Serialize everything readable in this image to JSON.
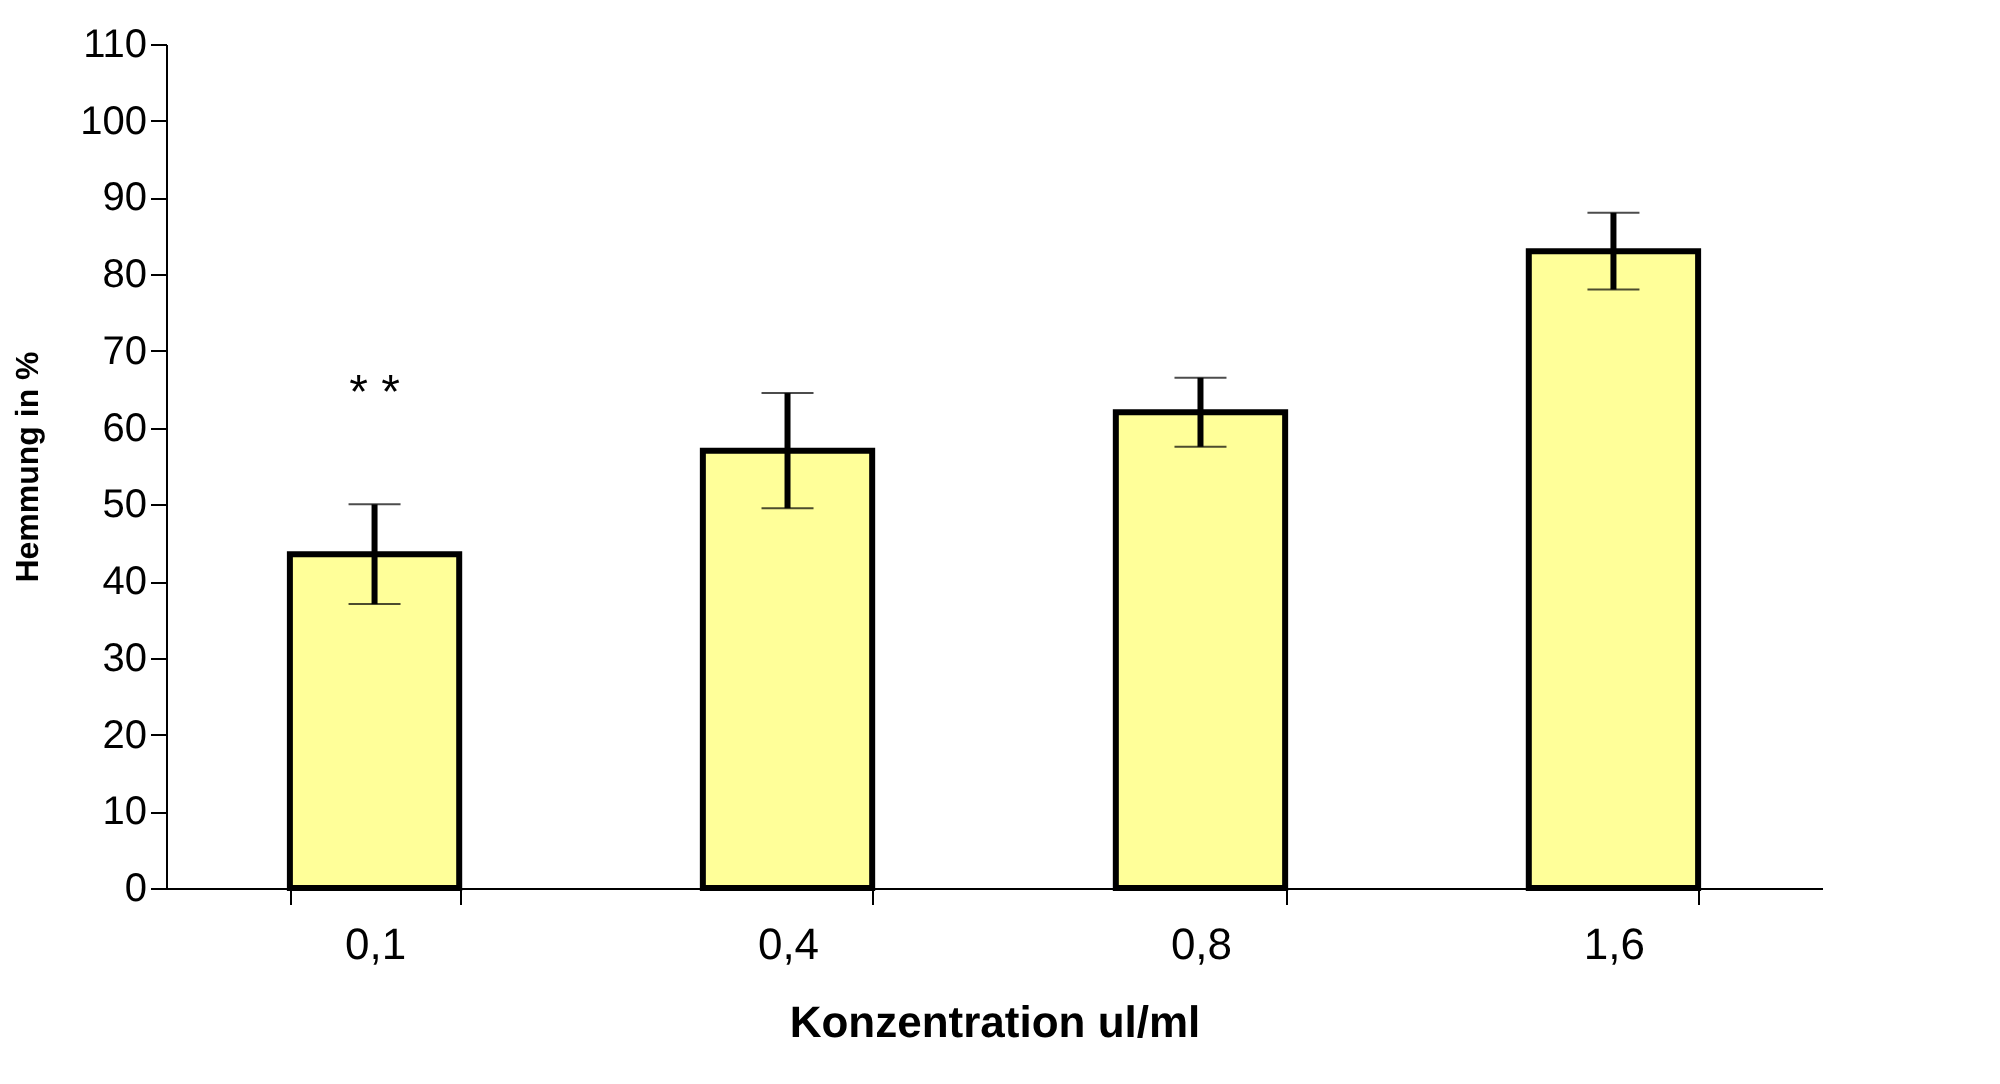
{
  "chart_data": {
    "type": "bar",
    "xlabel": "Konzentration ul/ml",
    "ylabel": "Hemmung in %",
    "categories": [
      "0,1",
      "0,4",
      "0,8",
      "1,6"
    ],
    "values": [
      43.5,
      57,
      62,
      83
    ],
    "errors": [
      6.5,
      7.5,
      4.5,
      5
    ],
    "color": "#ffff99",
    "ylim": [
      0,
      110
    ],
    "yticks": [
      0,
      10,
      20,
      30,
      40,
      50,
      60,
      70,
      80,
      90,
      100,
      110
    ],
    "annotations": [
      "* *"
    ]
  }
}
